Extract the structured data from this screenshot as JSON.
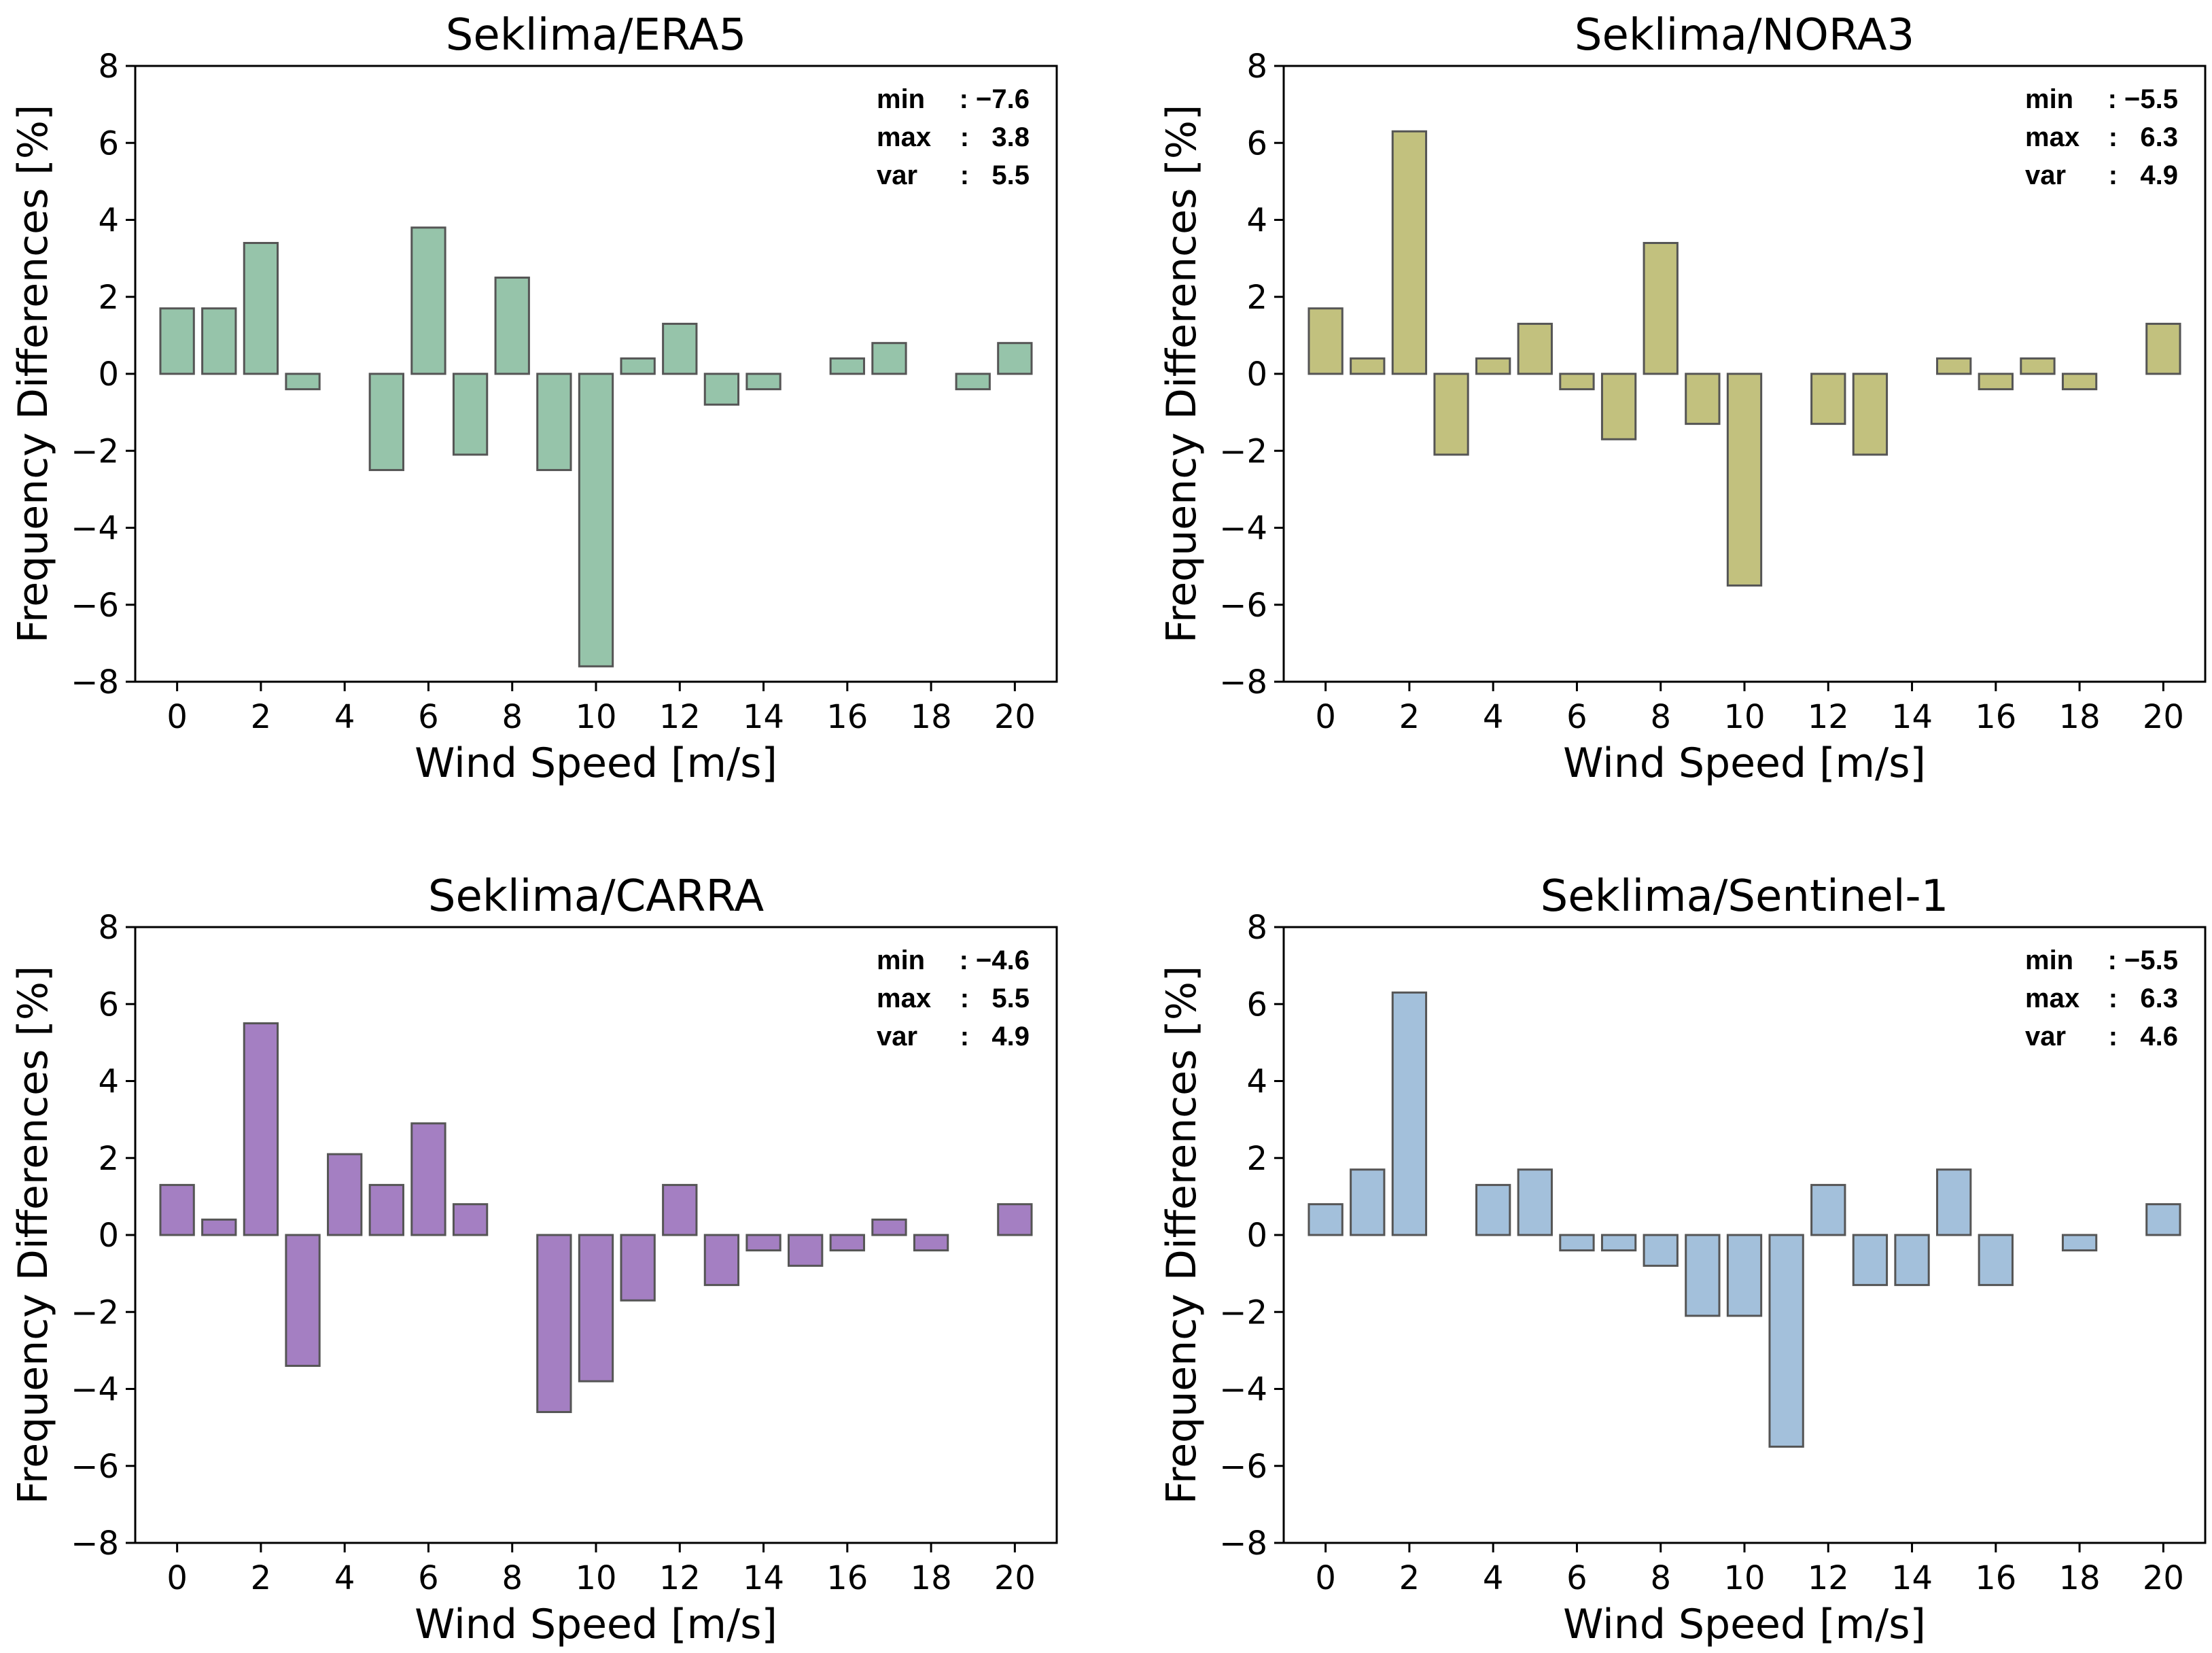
{
  "chart_data": [
    {
      "type": "bar",
      "title": "Seklima/ERA5",
      "xlabel": "Wind Speed [m/s]",
      "ylabel": "Frequency Differences [%]",
      "x": [
        0,
        1,
        2,
        3,
        4,
        5,
        6,
        7,
        8,
        9,
        10,
        11,
        12,
        13,
        14,
        15,
        16,
        17,
        18,
        19,
        20
      ],
      "values": [
        1.7,
        1.7,
        3.4,
        -0.4,
        0,
        -2.5,
        3.8,
        -2.1,
        2.5,
        -2.5,
        -7.6,
        0.4,
        1.3,
        -0.8,
        -0.4,
        0,
        0.4,
        0.8,
        0,
        -0.4,
        0.8
      ],
      "xticks": [
        "0",
        "2",
        "4",
        "6",
        "8",
        "10",
        "12",
        "14",
        "16",
        "18",
        "20"
      ],
      "yticks": [
        "8",
        "6",
        "4",
        "2",
        "0",
        "−2",
        "−4",
        "−6",
        "−8"
      ],
      "ylim": [
        -8,
        8
      ],
      "color": "#96c4aa",
      "edge_color": "#555555",
      "stats": {
        "min_label": "min",
        "min_value": ": −7.6",
        "max_label": "max",
        "max_value": ":   3.8",
        "var_label": "var",
        "var_value": ":   5.5"
      }
    },
    {
      "type": "bar",
      "title": "Seklima/NORA3",
      "xlabel": "Wind Speed [m/s]",
      "ylabel": "Frequency Differences [%]",
      "x": [
        0,
        1,
        2,
        3,
        4,
        5,
        6,
        7,
        8,
        9,
        10,
        11,
        12,
        13,
        14,
        15,
        16,
        17,
        18,
        19,
        20
      ],
      "values": [
        1.7,
        0.4,
        6.3,
        -2.1,
        0.4,
        1.3,
        -0.4,
        -1.7,
        3.4,
        -1.3,
        -5.5,
        0,
        -1.3,
        -2.1,
        0,
        0.4,
        -0.4,
        0.4,
        -0.4,
        0,
        1.3
      ],
      "xticks": [
        "0",
        "2",
        "4",
        "6",
        "8",
        "10",
        "12",
        "14",
        "16",
        "18",
        "20"
      ],
      "yticks": [
        "8",
        "6",
        "4",
        "2",
        "0",
        "−2",
        "−4",
        "−6",
        "−8"
      ],
      "ylim": [
        -8,
        8
      ],
      "color": "#c2c17e",
      "edge_color": "#555555",
      "stats": {
        "min_label": "min",
        "min_value": ": −5.5",
        "max_label": "max",
        "max_value": ":   6.3",
        "var_label": "var",
        "var_value": ":   4.9"
      }
    },
    {
      "type": "bar",
      "title": "Seklima/CARRA",
      "xlabel": "Wind Speed [m/s]",
      "ylabel": "Frequency Differences [%]",
      "x": [
        0,
        1,
        2,
        3,
        4,
        5,
        6,
        7,
        8,
        9,
        10,
        11,
        12,
        13,
        14,
        15,
        16,
        17,
        18,
        19,
        20
      ],
      "values": [
        1.3,
        0.4,
        5.5,
        -3.4,
        2.1,
        1.3,
        2.9,
        0.8,
        0,
        -4.6,
        -3.8,
        -1.7,
        1.3,
        -1.3,
        -0.4,
        -0.8,
        -0.4,
        0.4,
        -0.4,
        0,
        0.8
      ],
      "xticks": [
        "0",
        "2",
        "4",
        "6",
        "8",
        "10",
        "12",
        "14",
        "16",
        "18",
        "20"
      ],
      "yticks": [
        "8",
        "6",
        "4",
        "2",
        "0",
        "−2",
        "−4",
        "−6",
        "−8"
      ],
      "ylim": [
        -8,
        8
      ],
      "color": "#a47fc2",
      "edge_color": "#555555",
      "stats": {
        "min_label": "min",
        "min_value": ": −4.6",
        "max_label": "max",
        "max_value": ":   5.5",
        "var_label": "var",
        "var_value": ":   4.9"
      }
    },
    {
      "type": "bar",
      "title": "Seklima/Sentinel-1",
      "xlabel": "Wind Speed [m/s]",
      "ylabel": "Frequency Differences [%]",
      "x": [
        0,
        1,
        2,
        3,
        4,
        5,
        6,
        7,
        8,
        9,
        10,
        11,
        12,
        13,
        14,
        15,
        16,
        17,
        18,
        19,
        20
      ],
      "values": [
        0.8,
        1.7,
        6.3,
        0,
        1.3,
        1.7,
        -0.4,
        -0.4,
        -0.8,
        -2.1,
        -2.1,
        -5.5,
        1.3,
        -1.3,
        -1.3,
        1.7,
        -1.3,
        0,
        -0.4,
        0,
        0.8
      ],
      "xticks": [
        "0",
        "2",
        "4",
        "6",
        "8",
        "10",
        "12",
        "14",
        "16",
        "18",
        "20"
      ],
      "yticks": [
        "8",
        "6",
        "4",
        "2",
        "0",
        "−2",
        "−4",
        "−6",
        "−8"
      ],
      "ylim": [
        -8,
        8
      ],
      "color": "#a3c0db",
      "edge_color": "#555555",
      "stats": {
        "min_label": "min",
        "min_value": ": −5.5",
        "max_label": "max",
        "max_value": ":   6.3",
        "var_label": "var",
        "var_value": ":   4.6"
      }
    }
  ]
}
